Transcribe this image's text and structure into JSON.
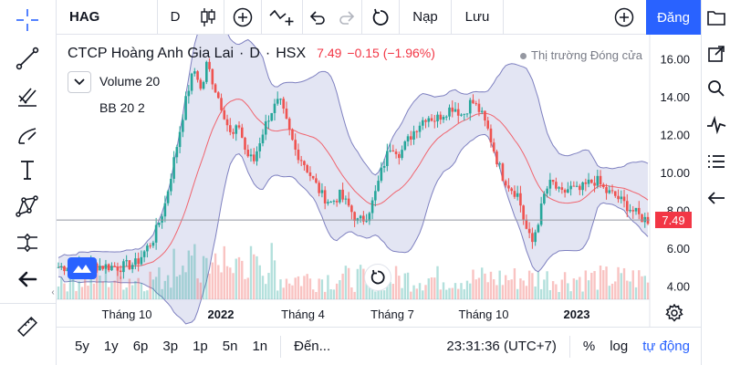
{
  "toolbar": {
    "symbol": "HAG",
    "interval": "D",
    "alert_label": "Nạp",
    "save_label": "Lưu",
    "publish_label": "Đăng"
  },
  "legend": {
    "company": "CTCP Hoàng Anh Gia Lai",
    "interval": "D",
    "exchange": "HSX",
    "last": "7.49",
    "change": "−0.15 (−1.96%)",
    "market_status": "Thị trường Đóng cửa",
    "volume_label": "Volume 20",
    "bb_label": "BB 20 2"
  },
  "price_tag": "7.49",
  "colors": {
    "up": "#26a69a",
    "down": "#ef5350",
    "band_fill": "#ccd0ea",
    "band_line": "#7e80c0",
    "basis": "#f0646e",
    "accent": "#2962ff"
  },
  "chart_data": {
    "type": "candlestick",
    "title": "CTCP Hoàng Anh Gia Lai · D · HSX",
    "y_ticks": [
      "16.00",
      "14.00",
      "12.00",
      "10.00",
      "8.00",
      "6.00",
      "4.00"
    ],
    "x_ticks": [
      "Tháng 10",
      "2022",
      "Tháng 4",
      "Tháng 7",
      "Tháng 10",
      "2023"
    ],
    "ylim": [
      3.2,
      16.9
    ],
    "close_path": [
      [
        0,
        5.0
      ],
      [
        28,
        5.1
      ],
      [
        55,
        5.0
      ],
      [
        70,
        5.2
      ],
      [
        85,
        6.5
      ],
      [
        95,
        8.2
      ],
      [
        103,
        10.5
      ],
      [
        108,
        12.0
      ],
      [
        113,
        13.5
      ],
      [
        118,
        14.8
      ],
      [
        123,
        15.5
      ],
      [
        128,
        14.2
      ],
      [
        133,
        15.8
      ],
      [
        140,
        14.5
      ],
      [
        148,
        13.2
      ],
      [
        155,
        11.8
      ],
      [
        162,
        12.5
      ],
      [
        168,
        11.0
      ],
      [
        175,
        10.6
      ],
      [
        182,
        12.0
      ],
      [
        190,
        13.2
      ],
      [
        198,
        13.8
      ],
      [
        205,
        12.5
      ],
      [
        212,
        11.2
      ],
      [
        220,
        10.5
      ],
      [
        228,
        9.6
      ],
      [
        236,
        8.8
      ],
      [
        244,
        8.4
      ],
      [
        252,
        8.8
      ],
      [
        260,
        8.2
      ],
      [
        268,
        7.4
      ],
      [
        275,
        7.6
      ],
      [
        282,
        8.5
      ],
      [
        290,
        10.2
      ],
      [
        298,
        11.5
      ],
      [
        306,
        11.0
      ],
      [
        314,
        11.8
      ],
      [
        322,
        12.5
      ],
      [
        330,
        13.0
      ],
      [
        338,
        12.8
      ],
      [
        346,
        13.2
      ],
      [
        354,
        13.5
      ],
      [
        362,
        13.0
      ],
      [
        370,
        13.8
      ],
      [
        378,
        13.2
      ],
      [
        385,
        12.2
      ],
      [
        392,
        10.8
      ],
      [
        398,
        9.8
      ],
      [
        405,
        9.2
      ],
      [
        412,
        8.8
      ],
      [
        418,
        7.2
      ],
      [
        424,
        6.2
      ],
      [
        430,
        7.5
      ],
      [
        436,
        9.0
      ],
      [
        442,
        9.5
      ],
      [
        450,
        8.8
      ],
      [
        458,
        9.2
      ],
      [
        466,
        9.0
      ],
      [
        474,
        9.4
      ],
      [
        482,
        9.6
      ],
      [
        490,
        9.0
      ],
      [
        498,
        8.8
      ],
      [
        506,
        8.4
      ],
      [
        514,
        8.0
      ],
      [
        522,
        7.6
      ],
      [
        528,
        7.49
      ]
    ],
    "volume": [],
    "bollinger": {
      "period": 20,
      "mult": 2
    }
  },
  "bottom": {
    "ranges": [
      "5y",
      "1y",
      "6p",
      "3p",
      "1p",
      "5n",
      "1n"
    ],
    "goto": "Đến...",
    "clock": "23:31:36 (UTC+7)",
    "percent": "%",
    "log": "log",
    "auto": "tự động"
  }
}
